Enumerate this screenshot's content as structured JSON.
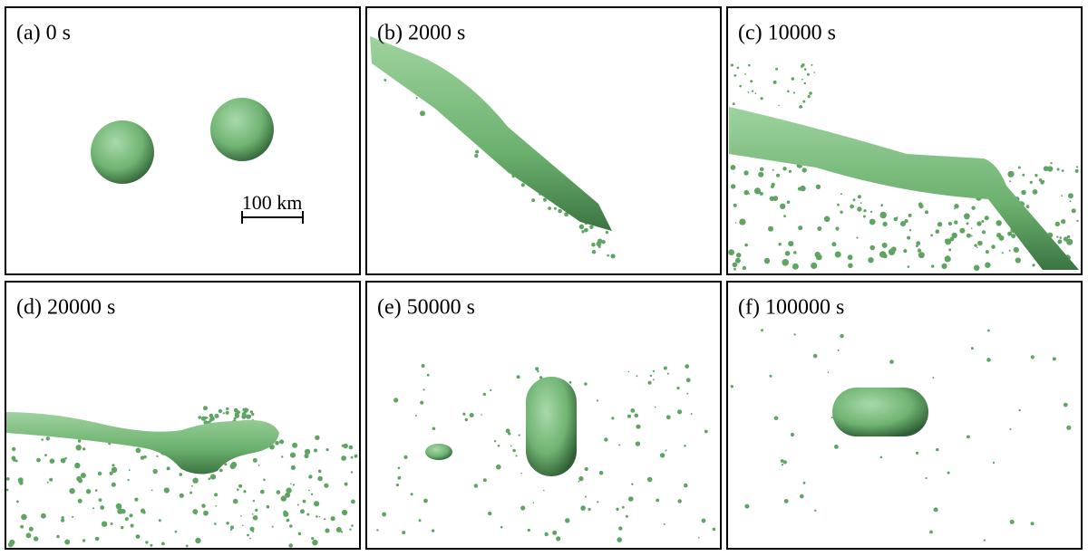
{
  "panels": [
    {
      "label": "(a) 0 s"
    },
    {
      "label": "(b) 2000 s"
    },
    {
      "label": "(c) 10000 s"
    },
    {
      "label": "(d) 20000 s"
    },
    {
      "label": "(e) 50000 s"
    },
    {
      "label": "(f) 100000 s"
    }
  ],
  "scale_bar": "100 km"
}
